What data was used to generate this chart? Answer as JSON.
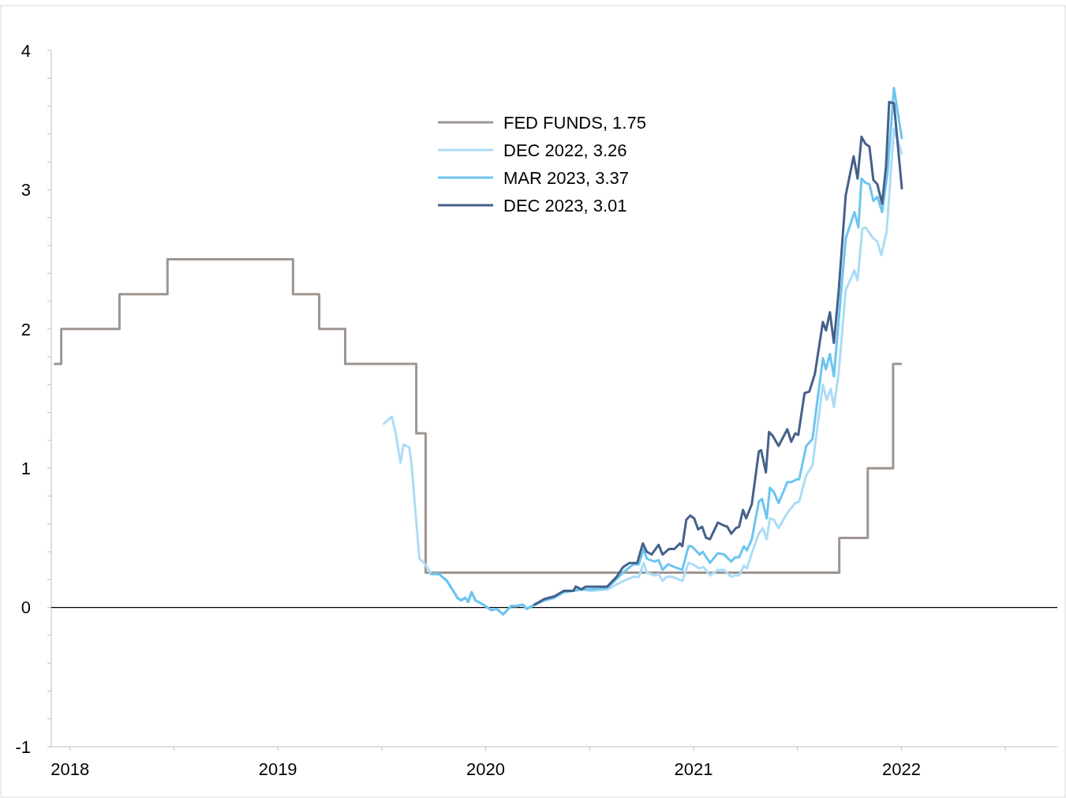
{
  "chart_data": {
    "type": "line",
    "xlim": [
      2017.91,
      2022.75
    ],
    "ylim": [
      -1,
      4
    ],
    "xticks": [
      {
        "value": 2018,
        "label": "2018"
      },
      {
        "value": 2018.5,
        "label": null
      },
      {
        "value": 2019,
        "label": "2019"
      },
      {
        "value": 2019.5,
        "label": null
      },
      {
        "value": 2020,
        "label": "2020"
      },
      {
        "value": 2020.5,
        "label": null
      },
      {
        "value": 2021,
        "label": "2021"
      },
      {
        "value": 2021.5,
        "label": null
      },
      {
        "value": 2022,
        "label": "2022"
      },
      {
        "value": 2022.5,
        "label": null
      }
    ],
    "yticks": [
      -1,
      {
        "value": -0.8,
        "label": null
      },
      {
        "value": -0.6,
        "label": null
      },
      {
        "value": -0.4,
        "label": null
      },
      {
        "value": -0.2,
        "label": null
      },
      0,
      {
        "value": 0.2,
        "label": null
      },
      {
        "value": 0.4,
        "label": null
      },
      {
        "value": 0.6,
        "label": null
      },
      {
        "value": 0.8,
        "label": null
      },
      1,
      {
        "value": 1.2,
        "label": null
      },
      {
        "value": 1.4,
        "label": null
      },
      {
        "value": 1.6,
        "label": null
      },
      {
        "value": 1.8,
        "label": null
      },
      2,
      {
        "value": 2.2,
        "label": null
      },
      {
        "value": 2.4,
        "label": null
      },
      {
        "value": 2.6,
        "label": null
      },
      {
        "value": 2.8,
        "label": null
      },
      3,
      {
        "value": 3.2,
        "label": null
      },
      {
        "value": 3.4,
        "label": null
      },
      {
        "value": 3.6,
        "label": null
      },
      {
        "value": 3.8,
        "label": null
      },
      4
    ],
    "grid": false,
    "legend": "top",
    "ref_lines": [
      {
        "axis": "y",
        "value": 0,
        "color": "#000000"
      }
    ],
    "series": [
      {
        "name": "FED FUNDS, 1.75",
        "type": "step",
        "color": "#9e9590",
        "x": [
          2017.927,
          2017.958,
          2018.238,
          2018.469,
          2019.073,
          2019.199,
          2019.324,
          2019.666,
          2019.711,
          2021.701,
          2021.838,
          2021.96,
          2021.998
        ],
        "values": [
          1.75,
          2.0,
          2.25,
          2.5,
          2.25,
          2.0,
          1.75,
          1.25,
          0.25,
          0.5,
          1.0,
          1.75,
          1.75
        ]
      },
      {
        "name": "DEC 2022, 3.26",
        "color": "#acdcf5",
        "x": [
          2019.51,
          2019.548,
          2019.567,
          2019.59,
          2019.605,
          2019.632,
          2019.643,
          2019.681,
          2019.704,
          2019.738,
          2019.776,
          2019.814,
          2019.852,
          2019.863,
          2019.882,
          2019.901,
          2019.916,
          2019.932,
          2019.951,
          2019.989,
          2020.027,
          2020.053,
          2020.084,
          2020.122,
          2020.148,
          2020.179,
          2020.197,
          2020.235,
          2020.281,
          2020.33,
          2020.376,
          2020.422,
          2020.46,
          2020.509,
          2020.585,
          2020.661,
          2020.71,
          2020.737,
          2020.76,
          2020.775,
          2020.813,
          2020.832,
          2020.851,
          2020.87,
          2020.9,
          2020.946,
          2020.976,
          2020.995,
          2021.029,
          2021.048,
          2021.079,
          2021.117,
          2021.147,
          2021.181,
          2021.2,
          2021.219,
          2021.242,
          2021.257,
          2021.28,
          2021.314,
          2021.333,
          2021.352,
          2021.367,
          2021.386,
          2021.409,
          2021.447,
          2021.489,
          2021.508,
          2021.542,
          2021.572,
          2021.622,
          2021.641,
          2021.66,
          2021.675,
          2021.698,
          2021.732,
          2021.774,
          2021.789,
          2021.812,
          2021.827,
          2021.865,
          2021.884,
          2021.903,
          2021.929,
          2021.964,
          2022.002
        ],
        "values": [
          1.32,
          1.37,
          1.25,
          1.04,
          1.17,
          1.15,
          1.03,
          0.35,
          0.32,
          0.24,
          0.24,
          0.19,
          0.1,
          0.07,
          0.05,
          0.07,
          0.04,
          0.11,
          0.05,
          0.02,
          -0.02,
          -0.01,
          -0.05,
          0.01,
          0.01,
          0.02,
          -0.01,
          0.02,
          0.05,
          0.07,
          0.11,
          0.12,
          0.13,
          0.12,
          0.13,
          0.19,
          0.22,
          0.22,
          0.32,
          0.25,
          0.23,
          0.24,
          0.19,
          0.22,
          0.22,
          0.19,
          0.32,
          0.31,
          0.28,
          0.29,
          0.23,
          0.27,
          0.27,
          0.22,
          0.23,
          0.23,
          0.3,
          0.28,
          0.39,
          0.53,
          0.57,
          0.49,
          0.64,
          0.63,
          0.57,
          0.67,
          0.75,
          0.76,
          0.95,
          1.02,
          1.6,
          1.49,
          1.57,
          1.44,
          1.68,
          2.28,
          2.42,
          2.35,
          2.72,
          2.73,
          2.65,
          2.63,
          2.53,
          2.7,
          3.44,
          3.26
        ]
      },
      {
        "name": "MAR 2023, 3.37",
        "color": "#6cc4f0",
        "x": [
          2019.738,
          2019.776,
          2019.814,
          2019.852,
          2019.863,
          2019.882,
          2019.901,
          2019.916,
          2019.932,
          2019.951,
          2019.989,
          2020.027,
          2020.053,
          2020.084,
          2020.122,
          2020.148,
          2020.179,
          2020.197,
          2020.235,
          2020.281,
          2020.33,
          2020.376,
          2020.422,
          2020.46,
          2020.509,
          2020.585,
          2020.661,
          2020.71,
          2020.737,
          2020.76,
          2020.775,
          2020.813,
          2020.832,
          2020.851,
          2020.877,
          2020.908,
          2020.946,
          2020.976,
          2020.991,
          2021.029,
          2021.044,
          2021.079,
          2021.117,
          2021.147,
          2021.181,
          2021.2,
          2021.219,
          2021.242,
          2021.257,
          2021.28,
          2021.314,
          2021.329,
          2021.352,
          2021.367,
          2021.386,
          2021.409,
          2021.451,
          2021.47,
          2021.496,
          2021.508,
          2021.542,
          2021.572,
          2021.622,
          2021.637,
          2021.656,
          2021.675,
          2021.732,
          2021.774,
          2021.793,
          2021.808,
          2021.827,
          2021.846,
          2021.865,
          2021.884,
          2021.907,
          2021.933,
          2021.964,
          2022.002
        ],
        "values": [
          0.24,
          0.24,
          0.19,
          0.1,
          0.07,
          0.05,
          0.07,
          0.04,
          0.11,
          0.05,
          0.02,
          -0.02,
          -0.01,
          -0.05,
          0.01,
          0.01,
          0.02,
          -0.01,
          0.02,
          0.05,
          0.07,
          0.11,
          0.12,
          0.13,
          0.13,
          0.14,
          0.25,
          0.31,
          0.31,
          0.42,
          0.35,
          0.33,
          0.34,
          0.27,
          0.31,
          0.29,
          0.27,
          0.44,
          0.44,
          0.38,
          0.4,
          0.32,
          0.39,
          0.38,
          0.33,
          0.36,
          0.36,
          0.44,
          0.41,
          0.49,
          0.76,
          0.78,
          0.64,
          0.86,
          0.83,
          0.75,
          0.9,
          0.9,
          0.92,
          0.92,
          1.16,
          1.21,
          1.79,
          1.71,
          1.82,
          1.66,
          2.65,
          2.84,
          2.73,
          3.08,
          3.05,
          3.04,
          2.92,
          2.95,
          2.84,
          3.12,
          3.73,
          3.37
        ]
      },
      {
        "name": "DEC 2023, 3.01",
        "color": "#45618a",
        "x": [
          2020.235,
          2020.281,
          2020.33,
          2020.376,
          2020.422,
          2020.433,
          2020.46,
          2020.482,
          2020.536,
          2020.585,
          2020.63,
          2020.661,
          2020.691,
          2020.729,
          2020.756,
          2020.775,
          2020.798,
          2020.832,
          2020.851,
          2020.881,
          2020.908,
          2020.934,
          2020.946,
          2020.965,
          2020.984,
          2021.003,
          2021.022,
          2021.041,
          2021.06,
          2021.079,
          2021.117,
          2021.143,
          2021.162,
          2021.181,
          2021.204,
          2021.219,
          2021.238,
          2021.253,
          2021.28,
          2021.314,
          2021.325,
          2021.348,
          2021.363,
          2021.382,
          2021.409,
          2021.451,
          2021.47,
          2021.489,
          2021.504,
          2021.534,
          2021.557,
          2021.584,
          2021.622,
          2021.637,
          2021.656,
          2021.675,
          2021.698,
          2021.732,
          2021.77,
          2021.789,
          2021.808,
          2021.827,
          2021.846,
          2021.865,
          2021.884,
          2021.907,
          2021.926,
          2021.941,
          2021.964,
          2022.002
        ],
        "values": [
          0.02,
          0.06,
          0.08,
          0.12,
          0.12,
          0.15,
          0.13,
          0.15,
          0.15,
          0.15,
          0.22,
          0.29,
          0.32,
          0.32,
          0.46,
          0.4,
          0.38,
          0.45,
          0.38,
          0.42,
          0.42,
          0.46,
          0.44,
          0.63,
          0.66,
          0.64,
          0.56,
          0.58,
          0.5,
          0.49,
          0.61,
          0.59,
          0.58,
          0.53,
          0.57,
          0.58,
          0.7,
          0.64,
          0.74,
          1.12,
          1.13,
          0.97,
          1.26,
          1.23,
          1.16,
          1.28,
          1.19,
          1.25,
          1.24,
          1.54,
          1.55,
          1.68,
          2.05,
          1.99,
          2.12,
          1.9,
          2.27,
          2.96,
          3.24,
          3.08,
          3.38,
          3.33,
          3.31,
          3.07,
          3.04,
          2.9,
          3.17,
          3.63,
          3.62,
          3.01
        ]
      }
    ]
  }
}
